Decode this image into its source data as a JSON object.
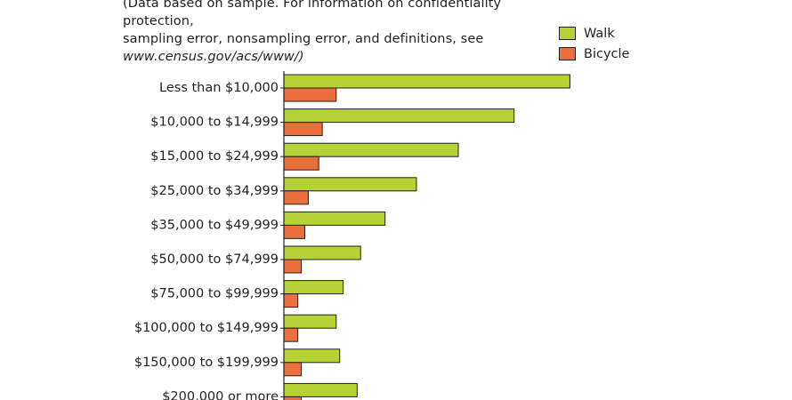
{
  "note": {
    "line1": "(Data based on sample. For information on confidentiality protection,",
    "line2": "sampling error, nonsampling error, and definitions, see",
    "url": "www.census.gov/acs/www/)"
  },
  "colors": {
    "walk": "#b5d334",
    "bicycle": "#ea6f3a",
    "border": "#231f20"
  },
  "chart_data": {
    "type": "bar",
    "orientation": "horizontal",
    "categories": [
      "Less than $10,000",
      "$10,000 to $14,999",
      "$15,000 to $24,999",
      "$25,000 to $34,999",
      "$35,000 to $49,999",
      "$50,000 to $74,999",
      "$75,000 to $99,999",
      "$100,000 to $149,999",
      "$150,000 to $199,999",
      "$200,000 or more"
    ],
    "series": [
      {
        "name": "Walk",
        "values": [
          8.2,
          6.6,
          5.0,
          3.8,
          2.9,
          2.2,
          1.7,
          1.5,
          1.6,
          2.1
        ]
      },
      {
        "name": "Bicycle",
        "values": [
          1.5,
          1.1,
          1.0,
          0.7,
          0.6,
          0.5,
          0.4,
          0.4,
          0.5,
          0.5
        ]
      }
    ],
    "xlim": [
      0,
      10
    ],
    "legend_position": "top-right"
  }
}
